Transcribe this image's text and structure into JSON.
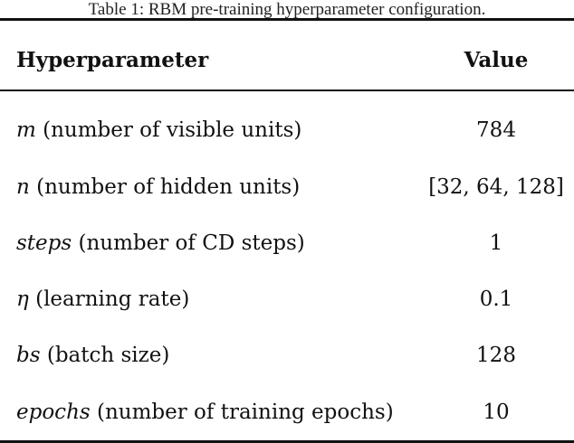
{
  "caption": "Table 1: RBM pre-training hyperparameter configuration.",
  "columns": {
    "param": "Hyperparameter",
    "value": "Value"
  },
  "rows": [
    {
      "symbol": "m",
      "description": "(number of visible units)",
      "value": "784"
    },
    {
      "symbol": "n",
      "description": "(number of hidden units)",
      "value": "[32, 64, 128]"
    },
    {
      "symbol": "steps",
      "description": "(number of CD steps)",
      "value": "1"
    },
    {
      "symbol": "η",
      "description": "(learning rate)",
      "value": "0.1"
    },
    {
      "symbol": "bs",
      "description": "(batch size)",
      "value": "128"
    },
    {
      "symbol": "epochs",
      "description": "(number of training epochs)",
      "value": "10"
    }
  ]
}
